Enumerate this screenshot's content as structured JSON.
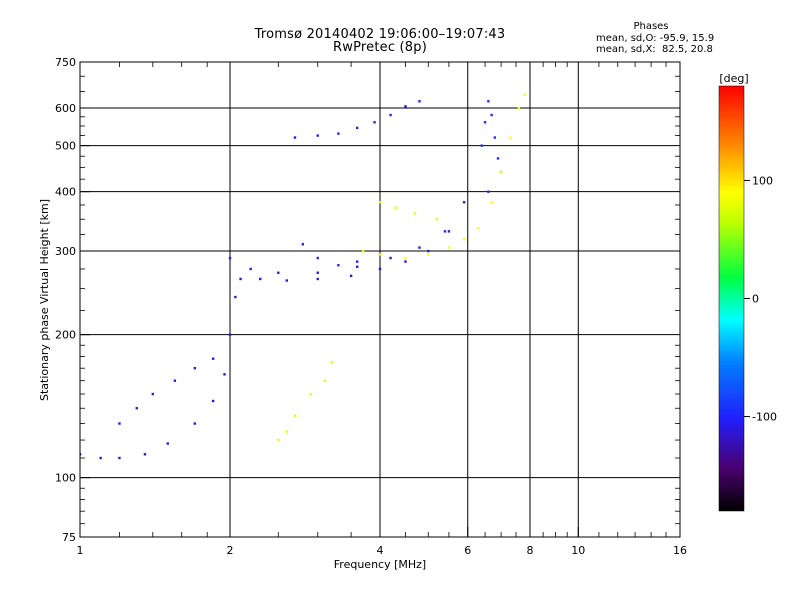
{
  "title_line1": "Tromsø 20140402 19:06:00–19:07:43",
  "title_line2": "RwPretec (8p)",
  "phase_stats": {
    "header": "Phases",
    "line_o": "mean, sd,O: -95.9, 15.9",
    "line_x": "mean, sd,X:  82.5, 20.8"
  },
  "colorbar": {
    "label": "[deg]",
    "ticks": [
      "100",
      "0",
      "-100"
    ],
    "tick_values": [
      100,
      0,
      -100
    ],
    "range": [
      -180,
      180
    ]
  },
  "chart_data": {
    "type": "scatter",
    "xlabel": "Frequency [MHz]",
    "ylabel": "Stationary phase Virtual Height [km]",
    "x_scale": "log",
    "y_scale": "log",
    "xlim": [
      1,
      16
    ],
    "ylim": [
      75,
      750
    ],
    "x_ticks": [
      1,
      2,
      4,
      6,
      8,
      10,
      16
    ],
    "x_tick_labels": [
      "1",
      "2",
      "4",
      "6",
      "8",
      "10",
      "16"
    ],
    "y_ticks": [
      75,
      100,
      200,
      300,
      400,
      500,
      600,
      750
    ],
    "y_tick_labels": [
      "75",
      "100",
      "200",
      "300",
      "400",
      "500",
      "600",
      "750"
    ],
    "grid": true,
    "series": [
      {
        "phase": -110,
        "points": [
          [
            1.0,
            112
          ],
          [
            1.1,
            110
          ],
          [
            1.2,
            110
          ],
          [
            1.35,
            112
          ],
          [
            1.5,
            118
          ],
          [
            1.7,
            130
          ],
          [
            1.85,
            145
          ],
          [
            1.95,
            165
          ],
          [
            2.0,
            200
          ],
          [
            2.05,
            240
          ],
          [
            2.1,
            262
          ],
          [
            2.3,
            262
          ],
          [
            2.6,
            260
          ],
          [
            3.0,
            262
          ],
          [
            3.5,
            266
          ],
          [
            4.0,
            275
          ],
          [
            4.5,
            285
          ],
          [
            5.0,
            300
          ],
          [
            5.5,
            330
          ],
          [
            5.9,
            380
          ]
        ]
      },
      {
        "phase": -105,
        "points": [
          [
            1.2,
            130
          ],
          [
            1.3,
            140
          ],
          [
            1.4,
            150
          ],
          [
            1.55,
            160
          ],
          [
            1.7,
            170
          ],
          [
            1.85,
            178
          ],
          [
            2.0,
            290
          ],
          [
            2.2,
            275
          ],
          [
            2.5,
            270
          ],
          [
            3.0,
            270
          ],
          [
            3.6,
            278
          ],
          [
            4.2,
            290
          ],
          [
            4.8,
            305
          ],
          [
            5.4,
            330
          ]
        ]
      },
      {
        "phase": -100,
        "points": [
          [
            2.8,
            310
          ],
          [
            3.0,
            290
          ],
          [
            3.3,
            280
          ],
          [
            3.6,
            285
          ],
          [
            4.0,
            295
          ]
        ]
      },
      {
        "phase": -95,
        "points": [
          [
            6.4,
            500
          ],
          [
            6.5,
            560
          ],
          [
            6.6,
            620
          ],
          [
            6.7,
            580
          ],
          [
            6.8,
            520
          ],
          [
            6.9,
            470
          ],
          [
            7.0,
            440
          ],
          [
            6.6,
            400
          ]
        ]
      },
      {
        "phase": -100,
        "points": [
          [
            2.7,
            520
          ],
          [
            3.0,
            525
          ],
          [
            3.3,
            530
          ],
          [
            3.6,
            545
          ],
          [
            3.9,
            560
          ],
          [
            4.2,
            580
          ],
          [
            4.5,
            605
          ],
          [
            4.8,
            620
          ]
        ]
      },
      {
        "phase": 90,
        "points": [
          [
            3.7,
            300
          ],
          [
            4.0,
            295
          ],
          [
            4.5,
            290
          ],
          [
            5.0,
            295
          ],
          [
            5.5,
            305
          ],
          [
            5.9,
            318
          ],
          [
            6.3,
            335
          ],
          [
            6.7,
            380
          ],
          [
            7.0,
            440
          ],
          [
            7.3,
            520
          ],
          [
            7.6,
            600
          ],
          [
            7.8,
            640
          ]
        ]
      },
      {
        "phase": 95,
        "points": [
          [
            2.5,
            120
          ],
          [
            2.6,
            125
          ],
          [
            2.7,
            135
          ],
          [
            2.9,
            150
          ],
          [
            3.1,
            160
          ],
          [
            3.2,
            175
          ]
        ]
      },
      {
        "phase": 80,
        "points": [
          [
            4.0,
            380
          ],
          [
            4.3,
            370
          ],
          [
            4.7,
            360
          ],
          [
            5.2,
            350
          ]
        ]
      }
    ]
  }
}
